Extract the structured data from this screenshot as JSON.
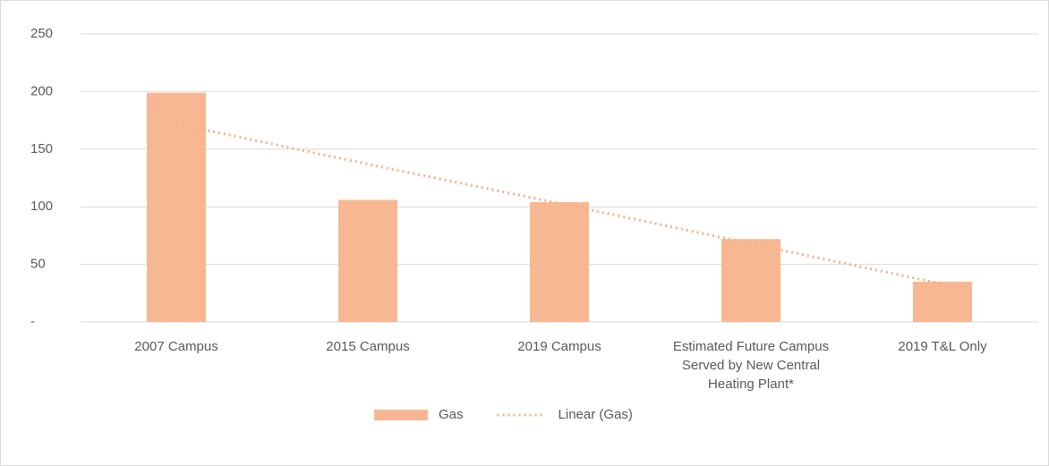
{
  "chart_data": {
    "type": "bar",
    "categories": [
      "2007 Campus",
      "2015 Campus",
      "2019 Campus",
      "Estimated Future Campus Served by New Central Heating Plant*",
      "2019 T&L Only"
    ],
    "series": [
      {
        "name": "Gas",
        "color": "#f8b793",
        "values": [
          199,
          106,
          104,
          72,
          35
        ]
      },
      {
        "name": "Linear (Gas)",
        "type": "line",
        "style": "dotted",
        "color": "#f4b183",
        "values": [
          172,
          137,
          103,
          68,
          33
        ]
      }
    ],
    "ylim": [
      0,
      250
    ],
    "yticks": [
      {
        "value": 0,
        "label": "-"
      },
      50,
      100,
      150,
      200,
      250
    ],
    "grid": true,
    "legend": "bottom"
  }
}
